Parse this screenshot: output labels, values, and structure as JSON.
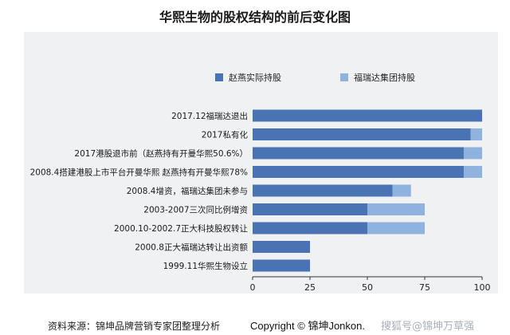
{
  "chart_data": {
    "type": "bar",
    "orientation": "horizontal",
    "stacked": true,
    "title": "华熙生物的股权结构的前后变化图",
    "categories": [
      "2017.12福瑞达退出",
      "2017私有化",
      "2017港股退市前（赵燕持有开曼华熙50.6%）",
      "2008.4搭建港股上市平台开曼华熙 赵燕持有开曼华熙78%",
      "2008.4增资，福瑞达集团未参与",
      "2003-2007三次同比例增资",
      "2000.10-2002.7正大科技股权转让",
      "2000.8正大福瑞达转让出资额",
      "1999.11华熙生物设立"
    ],
    "series": [
      {
        "name": "赵燕实际持股",
        "color": "#4a73b3",
        "values": [
          100,
          95,
          92,
          92,
          61,
          50,
          50,
          25,
          25
        ]
      },
      {
        "name": "福瑞达集团持股",
        "color": "#8fb3de",
        "values": [
          0,
          5,
          8,
          8,
          8,
          25,
          25,
          0,
          0
        ]
      }
    ],
    "xlim": [
      0,
      100
    ],
    "xticks": [
      "0",
      "25",
      "50",
      "75",
      "100"
    ],
    "legend_position": "top",
    "grid": false
  },
  "footer": {
    "source": "资料来源：锦坤品牌营销专家团整理分析",
    "copyright": "Copyright © 锦坤Jonkon.",
    "watermark": "搜狐号@锦坤万草强"
  }
}
